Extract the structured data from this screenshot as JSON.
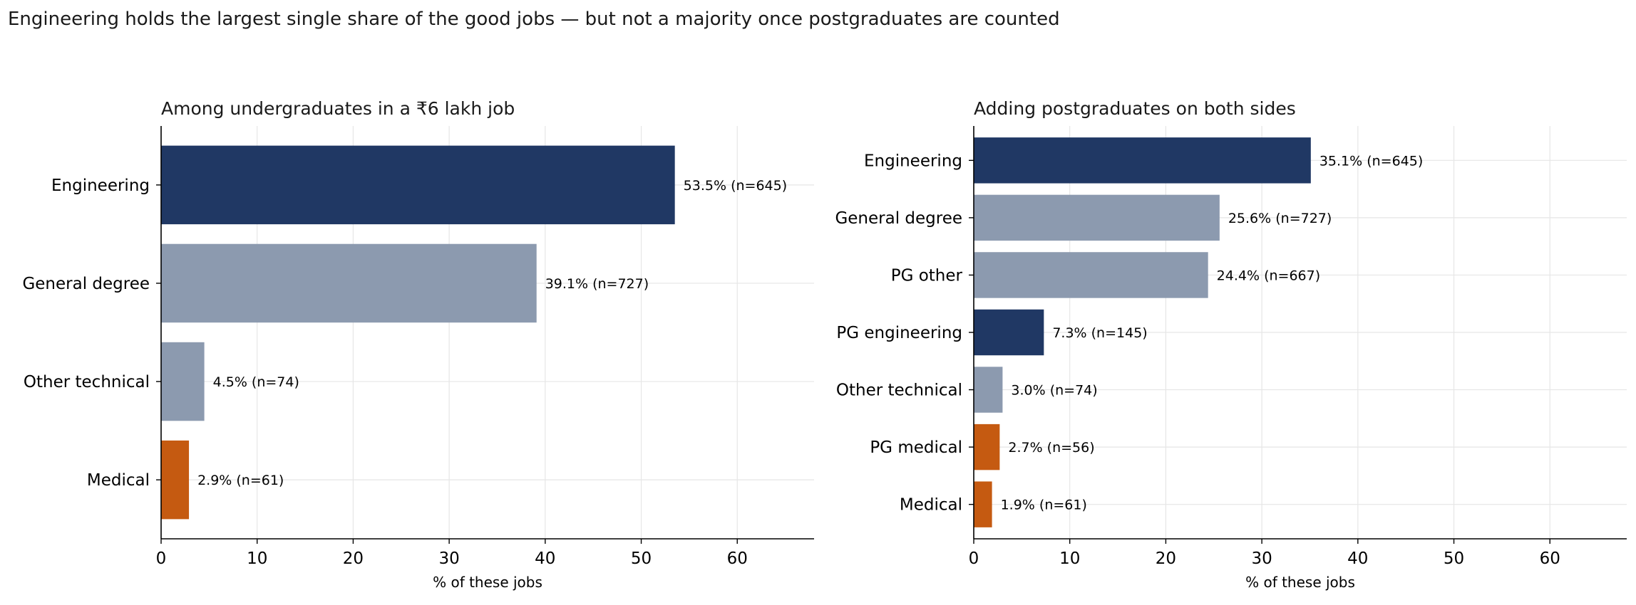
{
  "suptitle": "Engineering holds the largest single share of the good jobs — but not a majority once postgraduates are counted",
  "colors": {
    "engineering": "#203864",
    "general": "#8c9aaf",
    "medical": "#c55a11",
    "grid": "#e6e6e6",
    "axis": "#000000"
  },
  "chart_data": [
    {
      "type": "bar",
      "orientation": "horizontal",
      "title": "Among undergraduates in a ₹6 lakh job",
      "xlabel": "% of these jobs",
      "ylabel": "",
      "xlim": [
        0,
        68
      ],
      "xticks": [
        0,
        10,
        20,
        30,
        40,
        50,
        60
      ],
      "grid": true,
      "categories": [
        "Engineering",
        "General degree",
        "Other technical",
        "Medical"
      ],
      "values": [
        53.5,
        39.1,
        4.5,
        2.9
      ],
      "n": [
        645,
        727,
        74,
        61
      ],
      "labels": [
        "53.5%  (n=645)",
        "39.1%  (n=727)",
        "4.5%  (n=74)",
        "2.9%  (n=61)"
      ],
      "bar_colors": [
        "#203864",
        "#8c9aaf",
        "#8c9aaf",
        "#c55a11"
      ]
    },
    {
      "type": "bar",
      "orientation": "horizontal",
      "title": "Adding postgraduates on both sides",
      "xlabel": "% of these jobs",
      "ylabel": "",
      "xlim": [
        0,
        68
      ],
      "xticks": [
        0,
        10,
        20,
        30,
        40,
        50,
        60
      ],
      "grid": true,
      "categories": [
        "Engineering",
        "General degree",
        "PG other",
        "PG engineering",
        "Other technical",
        "PG medical",
        "Medical"
      ],
      "values": [
        35.1,
        25.6,
        24.4,
        7.3,
        3.0,
        2.7,
        1.9
      ],
      "n": [
        645,
        727,
        667,
        145,
        74,
        56,
        61
      ],
      "labels": [
        "35.1%  (n=645)",
        "25.6%  (n=727)",
        "24.4%  (n=667)",
        "7.3%  (n=145)",
        "3.0%  (n=74)",
        "2.7%  (n=56)",
        "1.9%  (n=61)"
      ],
      "bar_colors": [
        "#203864",
        "#8c9aaf",
        "#8c9aaf",
        "#203864",
        "#8c9aaf",
        "#c55a11",
        "#c55a11"
      ]
    }
  ]
}
